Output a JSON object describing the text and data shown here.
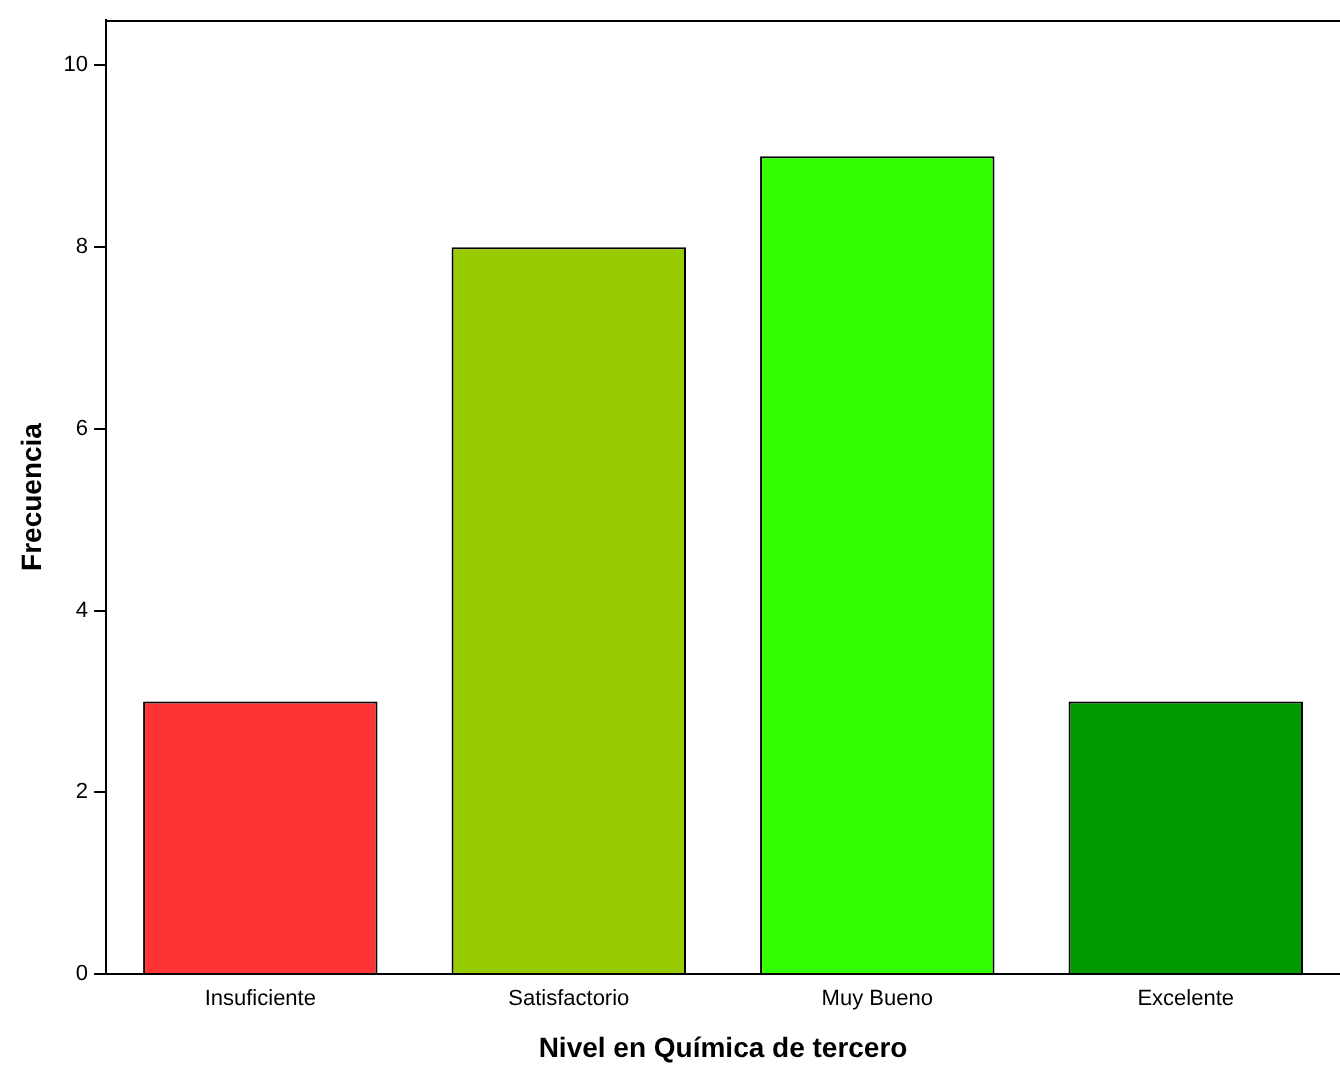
{
  "chart_data": {
    "type": "bar",
    "xlabel": "Nivel en Química de tercero",
    "ylabel": "Frecuencia",
    "categories": [
      "Insuficiente",
      "Satisfactorio",
      "Muy Bueno",
      "Excelente"
    ],
    "values": [
      3,
      8,
      9,
      3
    ],
    "colors": [
      "#ff3333",
      "#99cc00",
      "#33ff00",
      "#009900"
    ],
    "ylim": [
      0,
      10.5
    ],
    "yticks": [
      0,
      2,
      4,
      6,
      8,
      10
    ],
    "grid": false,
    "legend": false
  }
}
